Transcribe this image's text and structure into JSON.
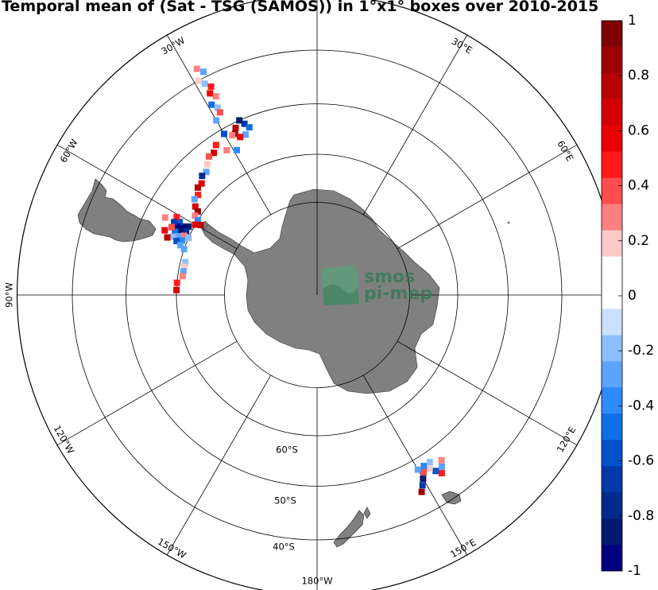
{
  "chart_data": {
    "type": "heatmap",
    "title": "Temporal mean of (Sat - TSG (SAMOS)) in 1°x1° boxes over 2010-2015",
    "projection": "south-polar-stereographic",
    "grid": true,
    "latitude_labels": [
      "60°S",
      "50°S",
      "40°S"
    ],
    "longitude_labels": [
      "30°W",
      "30°E",
      "60°W",
      "60°E",
      "90°W",
      "120°W",
      "120°E",
      "150°W",
      "150°E",
      "180°W"
    ],
    "colorbar": {
      "range": [
        -1,
        1
      ],
      "ticks": [
        "1",
        "0.8",
        "0.6",
        "0.4",
        "0.2",
        "0",
        "-0.2",
        "-0.4",
        "-0.6",
        "-0.8",
        "-1"
      ],
      "colors": [
        "#7f0000",
        "#9c0000",
        "#b80000",
        "#d40000",
        "#eb0000",
        "#ff1a1a",
        "#ff4d4d",
        "#ff8080",
        "#ffc9c9",
        "#ffffff",
        "#ffffff",
        "#c9e1ff",
        "#8cbfff",
        "#5ca4ff",
        "#2e8aff",
        "#0f6ee8",
        "#0052cc",
        "#003aa8",
        "#002a8c",
        "#001a6e",
        "#00007f"
      ]
    },
    "land_color": "#808080",
    "cells": [
      {
        "lon": -28,
        "lat": -38,
        "v": 0.3
      },
      {
        "lon": -27,
        "lat": -39,
        "v": -0.3
      },
      {
        "lon": -29,
        "lat": -40,
        "v": 0.2
      },
      {
        "lon": -28,
        "lat": -41,
        "v": -0.2
      },
      {
        "lon": -27,
        "lat": -42,
        "v": 0.5
      },
      {
        "lon": -28,
        "lat": -43,
        "v": 0.6
      },
      {
        "lon": -27,
        "lat": -44,
        "v": 0.3
      },
      {
        "lon": -29,
        "lat": -45,
        "v": -0.5
      },
      {
        "lon": -28,
        "lat": -46,
        "v": -0.2
      },
      {
        "lon": -28,
        "lat": -47,
        "v": 0.4
      },
      {
        "lon": -30,
        "lat": -48,
        "v": -0.3
      },
      {
        "lon": -23,
        "lat": -51,
        "v": -0.7
      },
      {
        "lon": -24,
        "lat": -50,
        "v": -0.9
      },
      {
        "lon": -26,
        "lat": -51,
        "v": 0.8
      },
      {
        "lon": -27,
        "lat": -52,
        "v": 0.9
      },
      {
        "lon": -22,
        "lat": -52,
        "v": -0.5
      },
      {
        "lon": -24,
        "lat": -53,
        "v": -0.3
      },
      {
        "lon": -26,
        "lat": -53,
        "v": 0.6
      },
      {
        "lon": -28,
        "lat": -52,
        "v": 0.3
      },
      {
        "lon": -30,
        "lat": -51,
        "v": -0.6
      },
      {
        "lon": -34,
        "lat": -52,
        "v": 0.5
      },
      {
        "lon": -36,
        "lat": -53,
        "v": 0.7
      },
      {
        "lon": -38,
        "lat": -53,
        "v": 0.4
      },
      {
        "lon": -40,
        "lat": -54,
        "v": 0.2
      },
      {
        "lon": -42,
        "lat": -55,
        "v": -0.3
      },
      {
        "lon": -44,
        "lat": -55,
        "v": -0.8
      },
      {
        "lon": -32,
        "lat": -54,
        "v": 0.3
      },
      {
        "lon": -29,
        "lat": -55,
        "v": -0.4
      },
      {
        "lon": -46,
        "lat": -56,
        "v": 0.6
      },
      {
        "lon": -48,
        "lat": -56,
        "v": 0.8
      },
      {
        "lon": -50,
        "lat": -57,
        "v": 0.5
      },
      {
        "lon": -52,
        "lat": -57,
        "v": -0.3
      },
      {
        "lon": -54,
        "lat": -58,
        "v": 0.7
      },
      {
        "lon": -55,
        "lat": -59,
        "v": 0.9
      },
      {
        "lon": -57,
        "lat": -59,
        "v": 0.3
      },
      {
        "lon": -58,
        "lat": -60,
        "v": -0.4
      },
      {
        "lon": -59,
        "lat": -61,
        "v": 0.8
      },
      {
        "lon": -60,
        "lat": -60,
        "v": 0.6
      },
      {
        "lon": -62,
        "lat": -59,
        "v": -0.9
      },
      {
        "lon": -63,
        "lat": -58,
        "v": -1.0
      },
      {
        "lon": -64,
        "lat": -59,
        "v": -0.8
      },
      {
        "lon": -62,
        "lat": -57,
        "v": -0.6
      },
      {
        "lon": -64,
        "lat": -57,
        "v": -1.0
      },
      {
        "lon": -65,
        "lat": -58,
        "v": -0.9
      },
      {
        "lon": -61,
        "lat": -56,
        "v": 0.5
      },
      {
        "lon": -63,
        "lat": -56,
        "v": -0.7
      },
      {
        "lon": -66,
        "lat": -57,
        "v": -0.5
      },
      {
        "lon": -65,
        "lat": -56,
        "v": 0.4
      },
      {
        "lon": -67,
        "lat": -58,
        "v": -0.3
      },
      {
        "lon": -68,
        "lat": -57,
        "v": -0.2
      },
      {
        "lon": -66,
        "lat": -59,
        "v": 0.3
      },
      {
        "lon": -68,
        "lat": -59,
        "v": -0.4
      },
      {
        "lon": -69,
        "lat": -58,
        "v": -0.6
      },
      {
        "lon": -70,
        "lat": -59,
        "v": -0.3
      },
      {
        "lon": -67,
        "lat": -55,
        "v": 0.6
      },
      {
        "lon": -69,
        "lat": -56,
        "v": 0.8
      },
      {
        "lon": -63,
        "lat": -54,
        "v": 0.3
      },
      {
        "lon": -66,
        "lat": -60,
        "v": -0.2
      },
      {
        "lon": -71,
        "lat": -60,
        "v": -0.3
      },
      {
        "lon": -76,
        "lat": -61,
        "v": -0.2
      },
      {
        "lon": -78,
        "lat": -61,
        "v": 0.2
      },
      {
        "lon": -80,
        "lat": -61,
        "v": -0.3
      },
      {
        "lon": -82,
        "lat": -61,
        "v": 0.3
      },
      {
        "lon": -85,
        "lat": -60,
        "v": 0.5
      },
      {
        "lon": -88,
        "lat": -60,
        "v": 0.7
      },
      {
        "lon": 143,
        "lat": -47,
        "v": 0.3
      },
      {
        "lon": 144,
        "lat": -46,
        "v": -0.3
      },
      {
        "lon": 145,
        "lat": -45,
        "v": 0.5
      },
      {
        "lon": 146,
        "lat": -46,
        "v": -0.6
      },
      {
        "lon": 147,
        "lat": -47,
        "v": 0.2
      },
      {
        "lon": 148,
        "lat": -48,
        "v": -0.4
      },
      {
        "lon": 149,
        "lat": -47,
        "v": 0.4
      },
      {
        "lon": 146,
        "lat": -48,
        "v": -0.2
      },
      {
        "lon": 150,
        "lat": -46,
        "v": -0.9
      },
      {
        "lon": 151,
        "lat": -45,
        "v": -0.7
      },
      {
        "lon": 152,
        "lat": -44,
        "v": 0.9
      },
      {
        "lon": 150,
        "lat": -48,
        "v": -0.3
      }
    ]
  },
  "watermark": {
    "line1": "smos",
    "line2": "pi-mep"
  }
}
